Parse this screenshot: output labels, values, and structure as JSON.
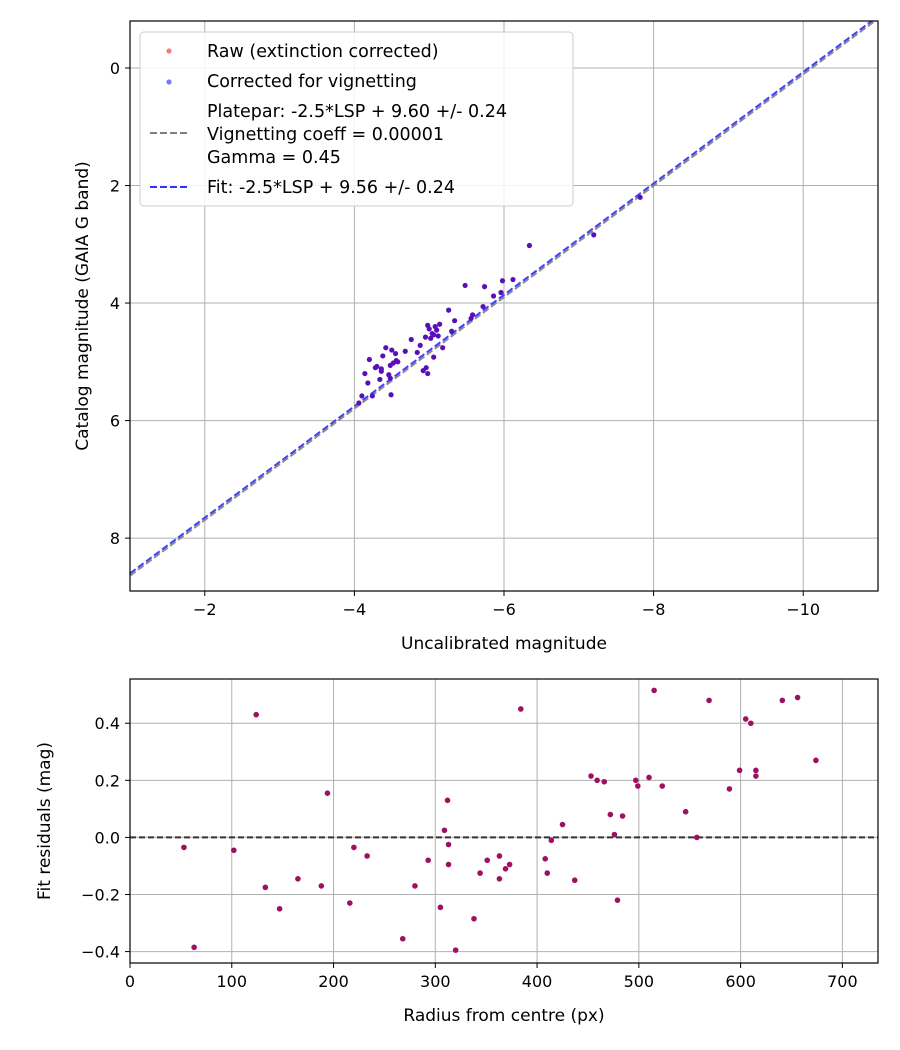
{
  "chart_data": [
    {
      "type": "scatter",
      "xlabel": "Uncalibrated magnitude",
      "ylabel": "Catalog magnitude (GAIA G band)",
      "xlim": [
        -1.0,
        -11.0
      ],
      "ylim": [
        8.9,
        -0.8
      ],
      "grid": true,
      "legend_position": "top-left",
      "xticks": [
        -2,
        -4,
        -6,
        -8,
        -10
      ],
      "xtick_labels": [
        "−2",
        "−4",
        "−6",
        "−8",
        "−10"
      ],
      "yticks": [
        0,
        2,
        4,
        6,
        8
      ],
      "ytick_labels": [
        "0",
        "2",
        "4",
        "6",
        "8"
      ],
      "legend": [
        {
          "label": "Raw (extinction corrected)",
          "kind": "marker",
          "color": "#ff2020"
        },
        {
          "label": "Corrected for vignetting",
          "kind": "marker",
          "color": "#2020ff"
        },
        {
          "label": "Platepar: -2.5*LSP + 9.60 +/- 0.24",
          "extra_lines": [
            "Vignetting coeff = 0.00001",
            "Gamma = 0.45"
          ],
          "kind": "line",
          "color": "#808080"
        },
        {
          "label": "Fit: -2.5*LSP + 9.56 +/- 0.24",
          "kind": "line",
          "color": "#3030ff"
        }
      ],
      "lines": [
        {
          "name": "Platepar",
          "x": [
            -1.0,
            -11.0
          ],
          "y": [
            8.64,
            -0.84
          ],
          "color": "#808080"
        },
        {
          "name": "Fit",
          "x": [
            -1.0,
            -11.0
          ],
          "y": [
            8.6,
            -0.88
          ],
          "color": "#3030ff"
        }
      ],
      "series": [
        {
          "name": "Corrected for vignetting",
          "color": "#5a10b8",
          "x": [
            -7.82,
            -7.2,
            -6.34,
            -6.12,
            -5.98,
            -5.96,
            -5.86,
            -5.74,
            -5.72,
            -5.58,
            -5.56,
            -5.48,
            -5.34,
            -5.3,
            -5.26,
            -5.18,
            -5.14,
            -5.12,
            -5.1,
            -5.08,
            -5.06,
            -5.04,
            -5.02,
            -5.0,
            -4.98,
            -4.96,
            -4.95,
            -4.92,
            -4.88,
            -4.84,
            -4.76,
            -4.68,
            -4.58,
            -4.56,
            -4.55,
            -4.52,
            -4.5,
            -4.49,
            -4.48,
            -4.46,
            -4.42,
            -4.38,
            -4.36,
            -4.34,
            -4.3,
            -4.28,
            -4.24,
            -4.2,
            -4.18,
            -4.14,
            -4.1,
            -4.06,
            -4.48,
            -4.36,
            -5.06,
            -4.98
          ],
          "y": [
            2.2,
            2.84,
            3.02,
            3.6,
            3.62,
            3.82,
            3.88,
            3.72,
            4.06,
            4.2,
            4.26,
            3.7,
            4.3,
            4.48,
            4.12,
            4.76,
            4.36,
            4.56,
            4.46,
            4.4,
            4.92,
            4.52,
            4.6,
            4.44,
            4.38,
            5.1,
            4.58,
            5.15,
            4.72,
            4.84,
            4.62,
            4.82,
            5.0,
            4.98,
            4.86,
            5.02,
            4.8,
            5.56,
            5.06,
            5.22,
            4.76,
            4.9,
            5.12,
            5.3,
            5.08,
            5.1,
            5.58,
            4.96,
            5.36,
            5.2,
            5.58,
            5.7,
            5.28,
            5.16,
            4.54,
            5.2
          ]
        }
      ]
    },
    {
      "type": "scatter",
      "xlabel": "Radius from centre (px)",
      "ylabel": "Fit residuals (mag)",
      "xlim": [
        0,
        735
      ],
      "ylim": [
        -0.44,
        0.555
      ],
      "grid": true,
      "xticks": [
        0,
        100,
        200,
        300,
        400,
        500,
        600,
        700
      ],
      "xtick_labels": [
        "0",
        "100",
        "200",
        "300",
        "400",
        "500",
        "600",
        "700"
      ],
      "yticks": [
        -0.4,
        -0.2,
        0.0,
        0.2,
        0.4
      ],
      "ytick_labels": [
        "−0.4",
        "−0.2",
        "0.0",
        "0.2",
        "0.4"
      ],
      "hline": {
        "y": 0,
        "style": "dashed",
        "color": "#333333"
      },
      "series": [
        {
          "name": "residuals",
          "color": "#a01060",
          "x": [
            53,
            63,
            102,
            124,
            133,
            147,
            165,
            188,
            194,
            216,
            220,
            233,
            268,
            280,
            293,
            305,
            309,
            312,
            313,
            313,
            320,
            338,
            344,
            351,
            363,
            363,
            369,
            373,
            384,
            408,
            410,
            414,
            425,
            437,
            453,
            459,
            466,
            472,
            476,
            479,
            484,
            497,
            499,
            510,
            515,
            523,
            546,
            557,
            569,
            589,
            599,
            605,
            610,
            615,
            615,
            641,
            656,
            674
          ],
          "y": [
            -0.035,
            -0.385,
            -0.045,
            0.43,
            -0.175,
            -0.25,
            -0.145,
            -0.17,
            0.155,
            -0.23,
            -0.035,
            -0.065,
            -0.355,
            -0.17,
            -0.08,
            -0.245,
            0.025,
            0.13,
            -0.025,
            -0.095,
            -0.395,
            -0.285,
            -0.125,
            -0.08,
            -0.145,
            -0.065,
            -0.11,
            -0.095,
            0.45,
            -0.075,
            -0.125,
            -0.01,
            0.045,
            -0.15,
            0.215,
            0.2,
            0.195,
            0.08,
            0.01,
            -0.22,
            0.075,
            0.2,
            0.18,
            0.21,
            0.515,
            0.18,
            0.09,
            0.0,
            0.48,
            0.17,
            0.235,
            0.415,
            0.4,
            0.235,
            0.215,
            0.48,
            0.49,
            0.27
          ]
        }
      ]
    }
  ]
}
